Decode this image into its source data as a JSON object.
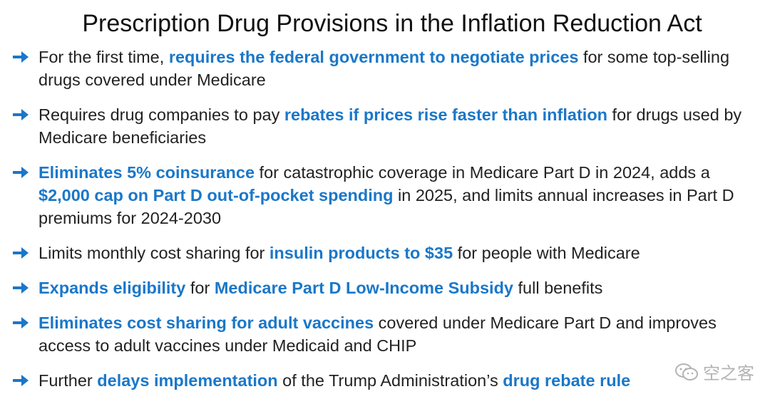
{
  "title": "Prescription Drug Provisions in the Inflation Reduction Act",
  "colors": {
    "accent": "#1a77c9",
    "text": "#222222"
  },
  "bullet_icon": "right-arrow-icon",
  "bullets": [
    {
      "segments": [
        {
          "text": "For the first time, ",
          "emphasis": false
        },
        {
          "text": "requires the federal government to negotiate prices",
          "emphasis": true
        },
        {
          "text": " for some top-selling drugs covered under Medicare",
          "emphasis": false
        }
      ]
    },
    {
      "segments": [
        {
          "text": "Requires drug companies to pay ",
          "emphasis": false
        },
        {
          "text": "rebates if prices rise faster than inflation",
          "emphasis": true
        },
        {
          "text": " for drugs used by Medicare beneficiaries",
          "emphasis": false
        }
      ]
    },
    {
      "segments": [
        {
          "text": "Eliminates 5% coinsurance",
          "emphasis": true
        },
        {
          "text": " for catastrophic coverage in Medicare Part D in 2024, adds a ",
          "emphasis": false
        },
        {
          "text": "$2,000 cap on Part D out-of-pocket spending",
          "emphasis": true
        },
        {
          "text": " in 2025, and limits annual increases in Part D premiums for 2024-2030",
          "emphasis": false
        }
      ]
    },
    {
      "segments": [
        {
          "text": "Limits monthly cost sharing for ",
          "emphasis": false
        },
        {
          "text": "insulin products to $35",
          "emphasis": true
        },
        {
          "text": " for people with Medicare",
          "emphasis": false
        }
      ]
    },
    {
      "segments": [
        {
          "text": "Expands eligibility",
          "emphasis": true
        },
        {
          "text": " for ",
          "emphasis": false
        },
        {
          "text": "Medicare Part D Low-Income Subsidy",
          "emphasis": true
        },
        {
          "text": " full benefits",
          "emphasis": false
        }
      ]
    },
    {
      "segments": [
        {
          "text": "Eliminates cost sharing for adult vaccines",
          "emphasis": true
        },
        {
          "text": " covered under Medicare Part D and improves access to adult vaccines under Medicaid and CHIP",
          "emphasis": false
        }
      ]
    },
    {
      "segments": [
        {
          "text": "Further ",
          "emphasis": false
        },
        {
          "text": "delays implementation",
          "emphasis": true
        },
        {
          "text": " of the Trump Administration’s ",
          "emphasis": false
        },
        {
          "text": "drug rebate rule",
          "emphasis": true
        }
      ]
    }
  ],
  "watermark": {
    "icon": "wechat-icon",
    "text": "空之客"
  }
}
